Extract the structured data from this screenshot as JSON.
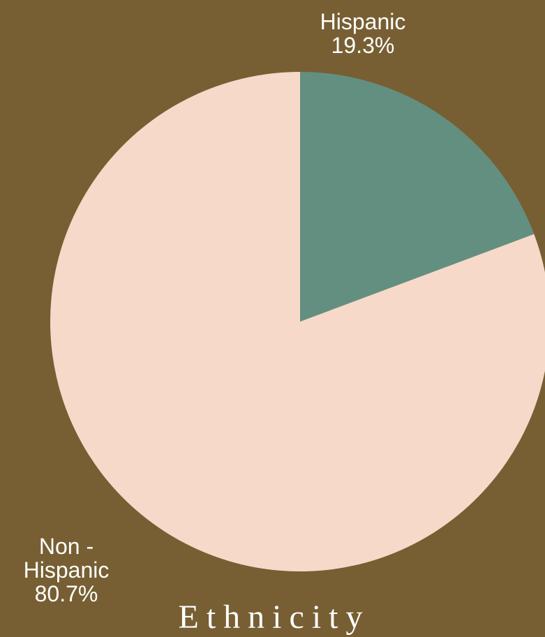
{
  "chart_data": {
    "type": "pie",
    "title": "Ethnicity",
    "slices": [
      {
        "label_lines": [
          "Hispanic",
          "19.3%"
        ],
        "category": "Hispanic",
        "value": 19.3,
        "color": "#638f80"
      },
      {
        "label_lines": [
          "Non -",
          "Hispanic",
          "80.7%"
        ],
        "category": "Non-Hispanic",
        "value": 80.7,
        "color": "#f6d9c9"
      }
    ],
    "start_angle": "12 o'clock",
    "direction": "clockwise",
    "colors": {
      "background": "#775f33",
      "label_text": "#ffffff"
    }
  }
}
